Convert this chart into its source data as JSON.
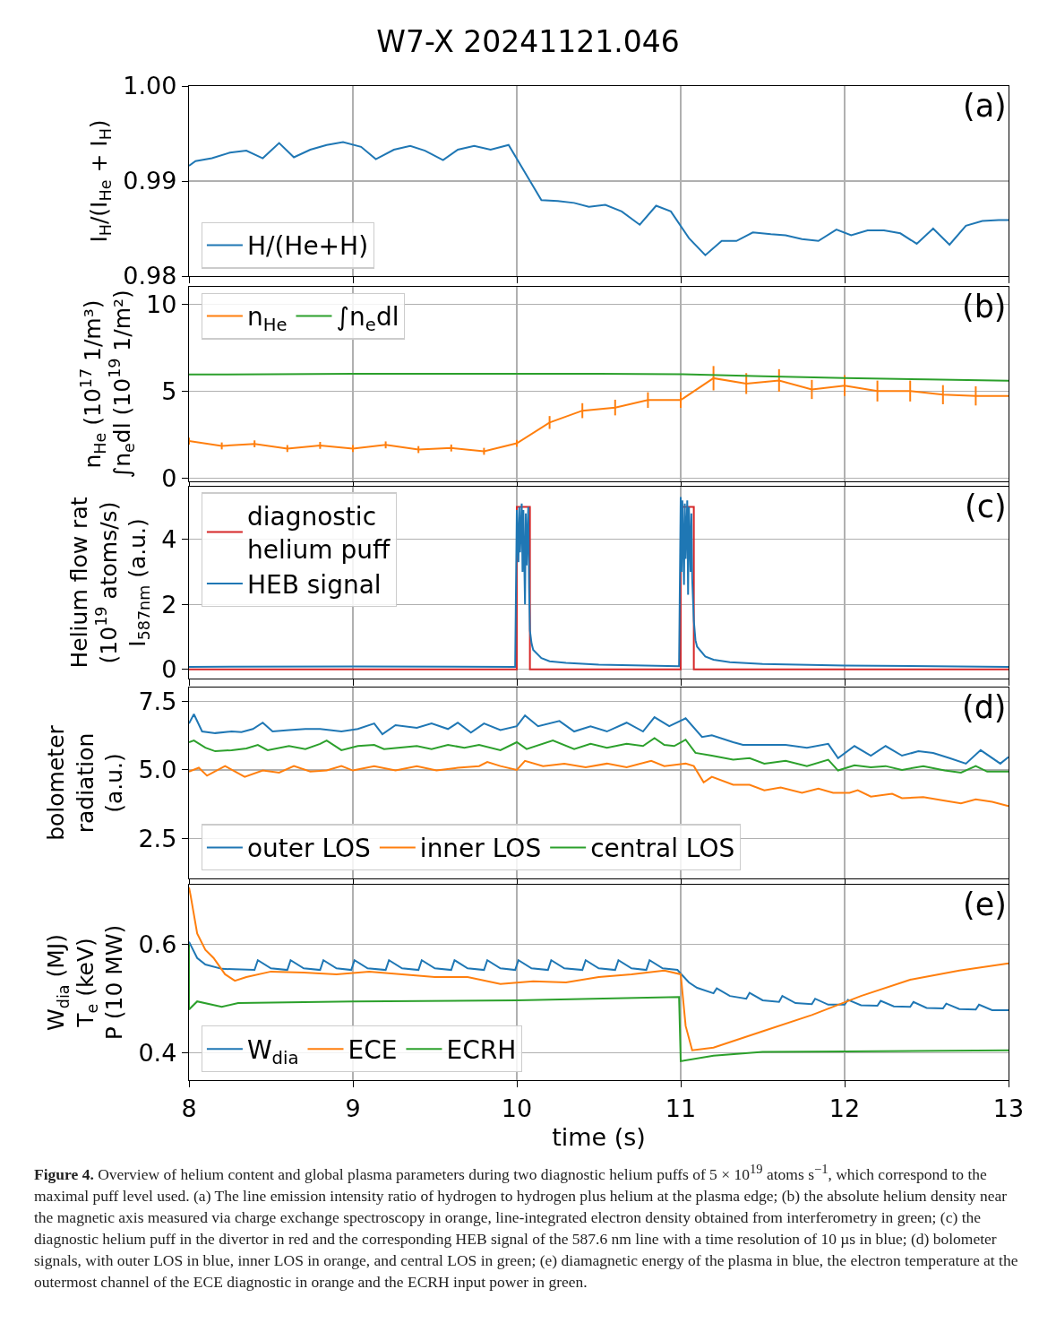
{
  "chart_data": [
    {
      "type": "line",
      "title": "W7-X 20241121.046",
      "ylabel": "I$_{H}$/(I$_{He}$ + I$_{H}$)",
      "annotations": [
        "(a)"
      ],
      "xlim": [
        8,
        13
      ],
      "xticks": [
        8,
        9,
        10,
        11,
        12,
        13
      ],
      "ylim": [
        0.98,
        1.0
      ],
      "yticks": [
        0.98,
        0.99,
        {
          "value": 1.0,
          "label": "1.00"
        }
      ],
      "grid": true,
      "legend": "bottom left",
      "tick_labels": "y",
      "series": [
        {
          "name": "H/(He+H)",
          "color": "#1f77b4",
          "x": [
            8.0,
            8.04,
            8.14,
            8.25,
            8.35,
            8.45,
            8.55,
            8.64,
            8.74,
            8.84,
            8.94,
            9.05,
            9.14,
            9.25,
            9.35,
            9.44,
            9.55,
            9.64,
            9.74,
            9.84,
            9.95,
            10.05,
            10.15,
            10.25,
            10.35,
            10.44,
            10.54,
            10.64,
            10.75,
            10.85,
            10.94,
            11.05,
            11.15,
            11.25,
            11.34,
            11.44,
            11.55,
            11.64,
            11.74,
            11.84,
            11.95,
            12.04,
            12.14,
            12.24,
            12.34,
            12.44,
            12.54,
            12.64,
            12.74,
            12.84,
            12.94,
            13.0
          ],
          "values": [
            0.9916,
            0.9921,
            0.9924,
            0.993,
            0.9932,
            0.9924,
            0.994,
            0.9925,
            0.9933,
            0.9938,
            0.9941,
            0.9936,
            0.9923,
            0.9933,
            0.9937,
            0.9932,
            0.9922,
            0.9933,
            0.9937,
            0.9933,
            0.9938,
            0.9909,
            0.988,
            0.9879,
            0.9877,
            0.9873,
            0.9875,
            0.9868,
            0.9854,
            0.9874,
            0.9868,
            0.984,
            0.9822,
            0.9837,
            0.9837,
            0.9846,
            0.9844,
            0.9843,
            0.9839,
            0.9837,
            0.9849,
            0.9843,
            0.9848,
            0.9848,
            0.9845,
            0.9834,
            0.985,
            0.9833,
            0.9853,
            0.9858,
            0.9859,
            0.9859
          ]
        }
      ]
    },
    {
      "type": "line",
      "ylabel": "n$_{He}$ (10$^{17}$ 1/m³)\n∫n$_{e}$dl (10$^{19}$ 1/m²)",
      "annotations": [
        "(b)"
      ],
      "xlim": [
        8,
        13
      ],
      "xticks": [
        8,
        9,
        10,
        11,
        12,
        13
      ],
      "ylim": [
        -0.2,
        11
      ],
      "yticks": [
        0,
        5,
        10
      ],
      "grid": true,
      "legend": "top left",
      "tick_labels": "y",
      "series": [
        {
          "name": "n$_{He}$",
          "color": "#ff7f0e",
          "x": [
            8.0,
            8.2,
            8.4,
            8.6,
            8.8,
            9.0,
            9.2,
            9.4,
            9.6,
            9.8,
            10.0,
            10.2,
            10.4,
            10.6,
            10.8,
            11.0,
            11.2,
            11.4,
            11.6,
            11.8,
            12.0,
            12.2,
            12.4,
            12.6,
            12.8,
            13.0
          ],
          "values": [
            2.12,
            1.84,
            1.96,
            1.69,
            1.87,
            1.69,
            1.9,
            1.63,
            1.72,
            1.53,
            1.99,
            3.19,
            3.87,
            4.05,
            4.48,
            4.48,
            5.74,
            5.43,
            5.61,
            5.09,
            5.31,
            5.0,
            5.0,
            4.79,
            4.72,
            4.72
          ],
          "errors": [
            0.2,
            0.2,
            0.2,
            0.2,
            0.2,
            0.2,
            0.2,
            0.2,
            0.2,
            0.2,
            0.2,
            0.37,
            0.43,
            0.45,
            0.45,
            0.45,
            0.7,
            0.6,
            0.65,
            0.55,
            0.6,
            0.6,
            0.6,
            0.55,
            0.55,
            null
          ]
        },
        {
          "name": "∫n$_{e}$dl",
          "color": "#2ca02c",
          "x": [
            8,
            8.5,
            9,
            9.5,
            10,
            10.5,
            11,
            11.5,
            12,
            12.5,
            13
          ],
          "values": [
            5.95,
            5.97,
            6.0,
            5.99,
            6.0,
            5.99,
            5.97,
            5.85,
            5.75,
            5.67,
            5.6
          ]
        }
      ]
    },
    {
      "type": "line",
      "ylabel": "Helium flow rat\n(10$^{19}$ atoms/s)\nI$_{587nm}$ (a.u.)",
      "annotations": [
        "(c)"
      ],
      "xlim": [
        8,
        13
      ],
      "xticks": [
        8,
        9,
        10,
        11,
        12,
        13
      ],
      "ylim": [
        -0.28,
        5.62
      ],
      "yticks": [
        0,
        2,
        4
      ],
      "grid": true,
      "legend": "top left",
      "tick_labels": "y",
      "series": [
        {
          "name": "diagnostic\nhelium puff",
          "color": "#d62728",
          "x": [
            8,
            10,
            10,
            10.08,
            10.08,
            11,
            11,
            11.08,
            11.08,
            13
          ],
          "values": [
            0,
            0,
            5,
            5,
            0,
            0,
            5,
            5,
            0,
            0
          ]
        },
        {
          "name": "HEB signal",
          "color": "#1f77b4",
          "x": [
            8.0,
            9.0,
            9.99,
            10.0,
            10.01,
            10.015,
            10.02,
            10.03,
            10.035,
            10.04,
            10.05,
            10.055,
            10.06,
            10.07,
            10.075,
            10.08,
            10.09,
            10.1,
            10.15,
            10.2,
            10.3,
            10.5,
            10.99,
            11.0,
            11.005,
            11.01,
            11.02,
            11.025,
            11.03,
            11.04,
            11.045,
            11.05,
            11.06,
            11.065,
            11.07,
            11.08,
            11.09,
            11.1,
            11.15,
            11.2,
            11.3,
            11.5,
            12.0,
            13.0
          ],
          "values": [
            0.08,
            0.09,
            0.08,
            4.9,
            3.3,
            5.0,
            3.6,
            5.1,
            3.0,
            4.9,
            2.0,
            4.8,
            3.2,
            5.0,
            2.5,
            1.2,
            0.8,
            0.6,
            0.35,
            0.25,
            0.2,
            0.15,
            0.1,
            5.3,
            3.0,
            5.2,
            2.6,
            5.1,
            3.4,
            5.2,
            2.3,
            5.0,
            3.0,
            4.8,
            2.8,
            1.5,
            0.9,
            0.7,
            0.4,
            0.3,
            0.22,
            0.17,
            0.12,
            0.08
          ]
        }
      ]
    },
    {
      "type": "line",
      "ylabel": "bolometer\nradiation\n(a.u.)",
      "annotations": [
        "(d)"
      ],
      "xlim": [
        8,
        13
      ],
      "xticks": [
        8,
        9,
        10,
        11,
        12,
        13
      ],
      "ylim": [
        1.05,
        8.0
      ],
      "yticks": [
        2.5,
        {
          "value": 5,
          "label": "5.0"
        },
        7.5
      ],
      "grid": true,
      "legend": "bottom left",
      "tick_labels": "y",
      "series": [
        {
          "name": "outer LOS",
          "color": "#1f77b4",
          "x": [
            8.0,
            8.03,
            8.08,
            8.16,
            8.26,
            8.32,
            8.39,
            8.45,
            8.51,
            8.61,
            8.71,
            8.8,
            8.93,
            9.03,
            9.13,
            9.18,
            9.26,
            9.39,
            9.48,
            9.58,
            9.64,
            9.72,
            9.8,
            9.9,
            10.0,
            10.05,
            10.13,
            10.26,
            10.35,
            10.45,
            10.55,
            10.67,
            10.77,
            10.84,
            10.93,
            11.03,
            11.13,
            11.19,
            11.32,
            11.38,
            11.51,
            11.64,
            11.77,
            11.9,
            11.96,
            12.06,
            12.16,
            12.25,
            12.35,
            12.45,
            12.54,
            12.64,
            12.74,
            12.83,
            12.95,
            13.0
          ],
          "values": [
            6.69,
            7.03,
            6.4,
            6.34,
            6.4,
            6.38,
            6.49,
            6.72,
            6.4,
            6.45,
            6.49,
            6.49,
            6.4,
            6.49,
            6.69,
            6.3,
            6.63,
            6.53,
            6.69,
            6.49,
            6.72,
            6.36,
            6.69,
            6.45,
            6.59,
            6.98,
            6.59,
            6.78,
            6.4,
            6.59,
            6.4,
            6.72,
            6.4,
            6.92,
            6.59,
            6.88,
            6.2,
            6.26,
            6.01,
            5.91,
            5.91,
            5.91,
            5.81,
            5.95,
            5.43,
            5.87,
            5.52,
            5.87,
            5.52,
            5.68,
            5.62,
            5.43,
            5.23,
            5.72,
            5.23,
            5.47
          ]
        },
        {
          "name": "inner LOS",
          "color": "#ff7f0e",
          "x": [
            8.0,
            8.06,
            8.11,
            8.22,
            8.34,
            8.45,
            8.55,
            8.64,
            8.74,
            8.84,
            8.93,
            9.0,
            9.13,
            9.26,
            9.39,
            9.51,
            9.64,
            9.77,
            9.82,
            9.9,
            10.0,
            10.05,
            10.16,
            10.29,
            10.42,
            10.55,
            10.67,
            10.82,
            10.9,
            11.03,
            11.08,
            11.14,
            11.19,
            11.32,
            11.42,
            11.51,
            11.61,
            11.74,
            11.84,
            11.93,
            12.03,
            12.08,
            12.16,
            12.29,
            12.35,
            12.48,
            12.61,
            12.71,
            12.8,
            12.9,
            13.0
          ],
          "values": [
            4.94,
            5.08,
            4.79,
            5.14,
            4.75,
            4.98,
            4.9,
            5.14,
            4.94,
            4.98,
            5.14,
            4.98,
            5.14,
            4.98,
            5.14,
            4.98,
            5.08,
            5.14,
            5.29,
            5.14,
            5.0,
            5.33,
            5.14,
            5.23,
            5.1,
            5.23,
            5.1,
            5.33,
            5.14,
            5.23,
            5.14,
            4.55,
            4.75,
            4.46,
            4.46,
            4.26,
            4.36,
            4.17,
            4.32,
            4.17,
            4.17,
            4.26,
            4.03,
            4.13,
            3.97,
            4.01,
            3.88,
            3.78,
            3.93,
            3.84,
            3.68
          ]
        },
        {
          "name": "central LOS",
          "color": "#2ca02c",
          "x": [
            8.0,
            8.03,
            8.1,
            8.16,
            8.26,
            8.35,
            8.42,
            8.48,
            8.61,
            8.71,
            8.8,
            8.84,
            8.93,
            9.03,
            9.13,
            9.19,
            9.29,
            9.39,
            9.48,
            9.58,
            9.68,
            9.77,
            9.9,
            10.0,
            10.06,
            10.22,
            10.35,
            10.45,
            10.55,
            10.67,
            10.77,
            10.84,
            10.9,
            10.96,
            11.03,
            11.09,
            11.19,
            11.32,
            11.42,
            11.51,
            11.64,
            11.77,
            11.9,
            11.96,
            12.06,
            12.16,
            12.25,
            12.35,
            12.48,
            12.61,
            12.71,
            12.8,
            12.87,
            13.0
          ],
          "values": [
            6.01,
            6.07,
            5.81,
            5.68,
            5.72,
            5.78,
            5.91,
            5.72,
            5.87,
            5.76,
            5.95,
            6.07,
            5.72,
            5.87,
            5.91,
            5.76,
            5.81,
            5.87,
            5.76,
            5.91,
            5.81,
            5.91,
            5.72,
            6.01,
            5.76,
            6.07,
            5.76,
            5.95,
            5.81,
            5.95,
            5.87,
            6.16,
            5.91,
            5.87,
            6.1,
            5.62,
            5.52,
            5.37,
            5.43,
            5.23,
            5.33,
            5.14,
            5.37,
            4.98,
            5.17,
            5.1,
            5.14,
            5.0,
            5.14,
            4.98,
            4.9,
            5.14,
            4.94,
            4.94
          ]
        }
      ]
    },
    {
      "type": "line",
      "xlabel": "time (s)",
      "ylabel": "W$_{dia}$ (MJ)\nT$_{e}$ (keV)\nP (10 MW)",
      "annotations": [
        "(e)",
        "Figure 4. Overview of helium content and global plasma parameters during two diagnostic helium puffs of 5 × 10$^{19}$ atoms s$^{−1}$, which correspond to the maximal puff level used. (a) The line emission intensity ratio of hydrogen to hydrogen plus helium at the plasma edge; (b) the absolute helium density near the magnetic axis measured via charge exchange spectroscopy in orange, line-integrated electron density obtained from interferometry in green; (c) the diagnostic helium puff in the divertor in red and the corresponding HEB signal of the 587.6 nm line with a time resolution of 10 µs in blue; (d) bolometer signals, with outer LOS in blue, inner LOS in orange, and central LOS in green; (e) diamagnetic energy of the plasma in blue, the electron temperature at the outermost channel of the ECE diagnostic in orange and the ECRH input power in green."
      ],
      "xlim": [
        8,
        13
      ],
      "xticks": [
        8,
        9,
        10,
        11,
        12,
        13
      ],
      "ylim": [
        0.35,
        0.71
      ],
      "yticks": [
        0.4,
        0.6
      ],
      "grid": true,
      "legend": "bottom left",
      "series": [
        {
          "name": "W$_{dia}$",
          "color": "#1f77b4",
          "x": [
            8.0,
            8.05,
            8.1,
            8.2,
            8.4,
            8.42,
            8.5,
            8.6,
            8.62,
            8.7,
            8.8,
            8.82,
            8.9,
            8.99,
            9.01,
            9.09,
            9.2,
            9.22,
            9.3,
            9.4,
            9.42,
            9.5,
            9.6,
            9.62,
            9.7,
            9.8,
            9.82,
            9.9,
            9.99,
            10.01,
            10.09,
            10.19,
            10.21,
            10.29,
            10.4,
            10.42,
            10.5,
            10.6,
            10.62,
            10.7,
            10.79,
            10.81,
            10.89,
            10.98,
            11.05,
            11.1,
            11.2,
            11.22,
            11.3,
            11.4,
            11.42,
            11.5,
            11.6,
            11.62,
            11.7,
            11.8,
            11.82,
            11.9,
            12.0,
            12.02,
            12.1,
            12.2,
            12.22,
            12.3,
            12.4,
            12.42,
            12.5,
            12.6,
            12.62,
            12.7,
            12.8,
            12.82,
            12.9,
            13.0
          ],
          "values": [
            0.605,
            0.575,
            0.563,
            0.555,
            0.553,
            0.571,
            0.556,
            0.553,
            0.571,
            0.556,
            0.553,
            0.571,
            0.556,
            0.553,
            0.571,
            0.556,
            0.553,
            0.571,
            0.556,
            0.553,
            0.571,
            0.556,
            0.553,
            0.571,
            0.556,
            0.553,
            0.571,
            0.556,
            0.553,
            0.571,
            0.556,
            0.553,
            0.571,
            0.556,
            0.553,
            0.571,
            0.556,
            0.553,
            0.571,
            0.556,
            0.553,
            0.571,
            0.556,
            0.553,
            0.53,
            0.52,
            0.51,
            0.519,
            0.505,
            0.5,
            0.511,
            0.497,
            0.494,
            0.505,
            0.492,
            0.49,
            0.5,
            0.489,
            0.489,
            0.498,
            0.488,
            0.487,
            0.496,
            0.486,
            0.485,
            0.494,
            0.483,
            0.482,
            0.491,
            0.481,
            0.48,
            0.489,
            0.479,
            0.479
          ]
        },
        {
          "name": "ECE",
          "color": "#ff7f0e",
          "x": [
            8.0,
            8.01,
            8.05,
            8.1,
            8.15,
            8.22,
            8.28,
            8.35,
            8.5,
            8.7,
            8.9,
            9.1,
            9.3,
            9.5,
            9.7,
            9.9,
            10.1,
            10.3,
            10.5,
            10.7,
            10.9,
            11.0,
            11.03,
            11.07,
            11.2,
            11.5,
            11.8,
            12.1,
            12.4,
            12.7,
            13.0
          ],
          "values": [
            0.705,
            0.69,
            0.62,
            0.59,
            0.575,
            0.545,
            0.533,
            0.54,
            0.55,
            0.548,
            0.545,
            0.55,
            0.545,
            0.54,
            0.54,
            0.527,
            0.532,
            0.53,
            0.54,
            0.545,
            0.552,
            0.545,
            0.45,
            0.405,
            0.41,
            0.44,
            0.47,
            0.505,
            0.535,
            0.552,
            0.565
          ]
        },
        {
          "name": "ECRH",
          "color": "#2ca02c",
          "x": [
            8.0,
            8.0,
            8.05,
            8.2,
            8.3,
            9.0,
            10.0,
            10.99,
            11.0,
            11.2,
            11.5,
            12.0,
            13.0
          ],
          "values": [
            0.6,
            0.48,
            0.495,
            0.485,
            0.492,
            0.495,
            0.497,
            0.503,
            0.385,
            0.395,
            0.402,
            0.403,
            0.405
          ]
        }
      ]
    }
  ]
}
